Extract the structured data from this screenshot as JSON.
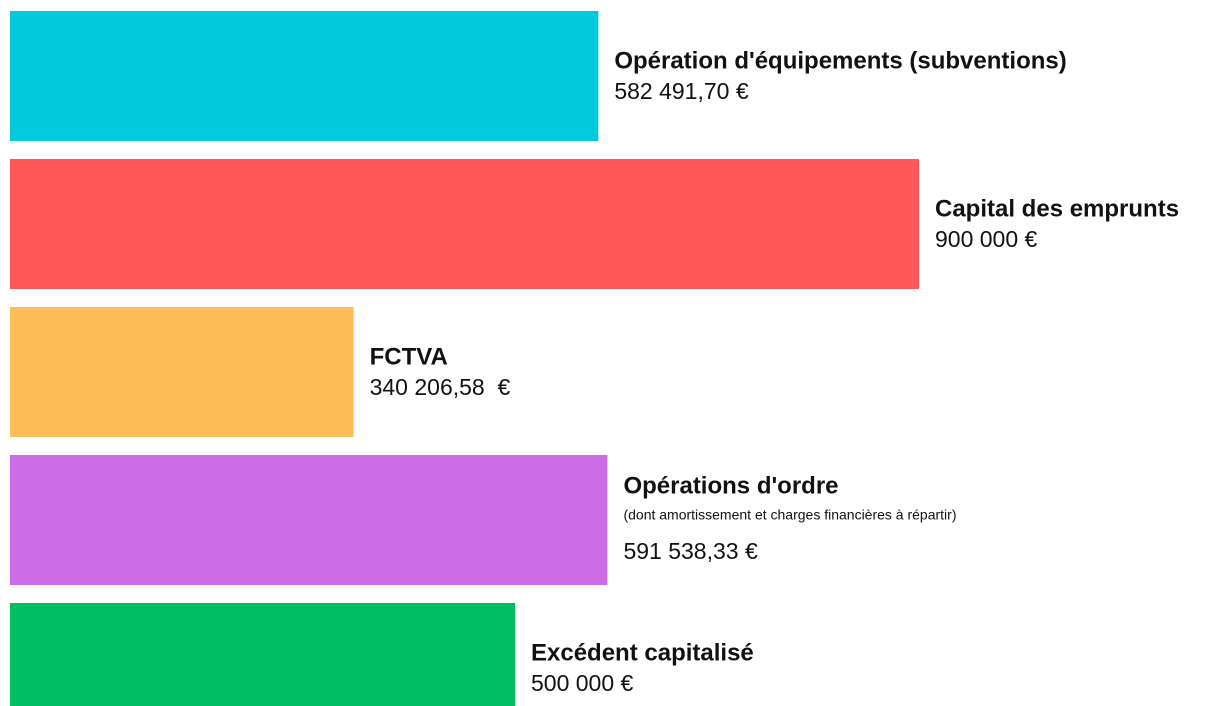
{
  "chart_data": {
    "type": "bar",
    "orientation": "horizontal",
    "categories": [
      "Opération d'équipements (subventions)",
      "Capital des emprunts",
      "FCTVA",
      "Opérations d'ordre",
      "Excédent capitalisé"
    ],
    "values": [
      582491.7,
      900000,
      340206.58,
      591538.33,
      500000
    ],
    "value_labels": [
      "582 491,70 €",
      "900 000 €",
      "340 206,58  €",
      "591 538,33 €",
      "500 000 €"
    ],
    "notes": [
      null,
      null,
      null,
      "(dont amortissement et charges financières à répartir)",
      null
    ],
    "colors": [
      "#00c9dc",
      "#ff5757",
      "#ffbd59",
      "#cb6ce6",
      "#00bf63"
    ]
  }
}
